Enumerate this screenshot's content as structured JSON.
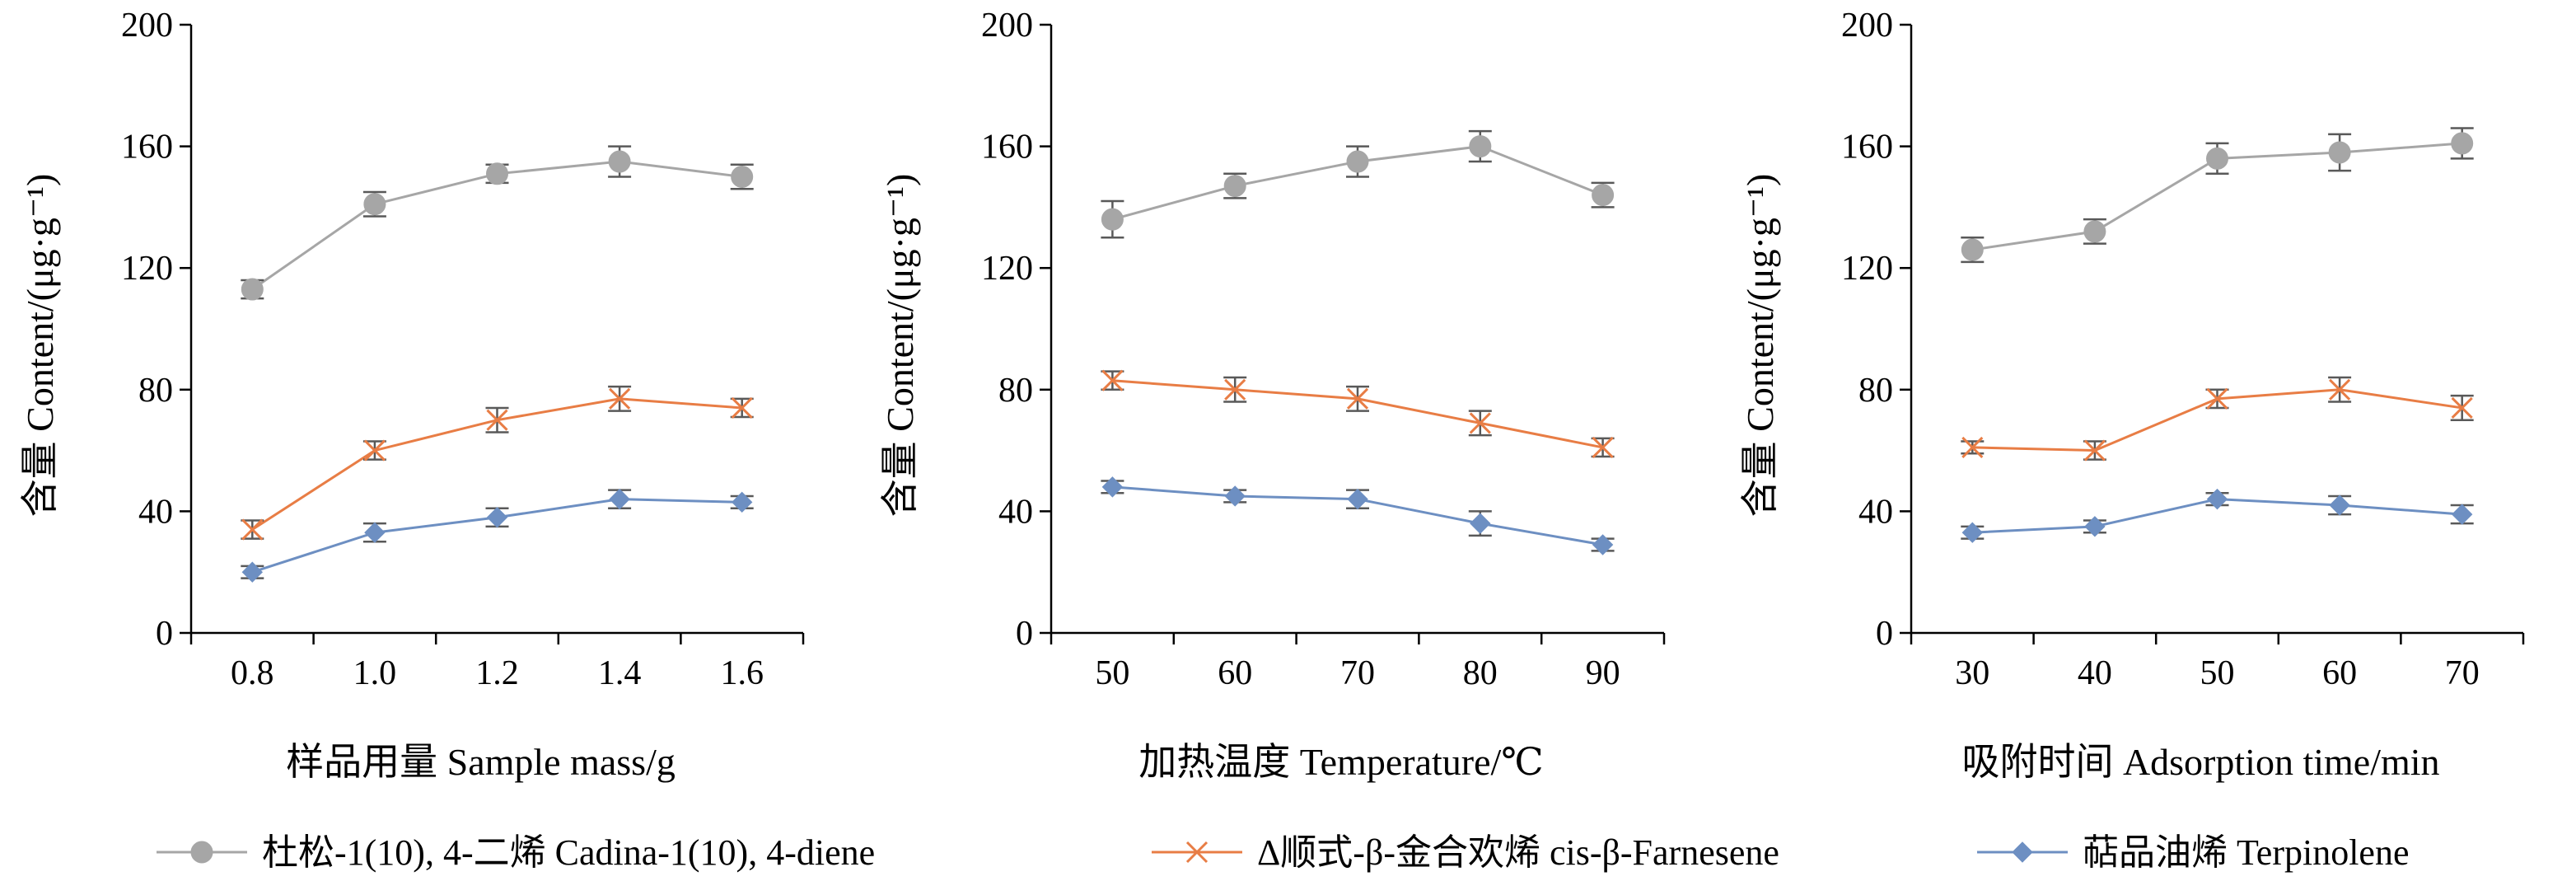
{
  "colors": {
    "series": [
      "#a6a6a6",
      "#e87d45",
      "#6d8fc2"
    ],
    "axis": "#000000"
  },
  "legend": {
    "placement": "bottom",
    "items": [
      {
        "label": "杜松-1(10), 4-二烯  Cadina-1(10), 4-diene",
        "marker": "circle"
      },
      {
        "label": "Δ顺式-β-金合欢烯  cis-β-Farnesene",
        "marker": "x"
      },
      {
        "label": "萜品油烯  Terpinolene",
        "marker": "diamond"
      }
    ]
  },
  "chart_data": [
    {
      "type": "line",
      "xlabel": "样品用量  Sample mass/g",
      "ylabel": "含量  Content/(μg·g⁻¹)",
      "categories": [
        "0.8",
        "1.0",
        "1.2",
        "1.4",
        "1.6"
      ],
      "ylim": [
        0,
        200
      ],
      "yticks": [
        "0",
        "40",
        "80",
        "120",
        "160",
        "200"
      ],
      "grid": false,
      "series": [
        {
          "name": "杜松-1(10), 4-二烯  Cadina-1(10), 4-diene",
          "values": [
            113,
            141,
            151,
            155,
            150
          ],
          "errors": [
            3,
            4,
            3,
            5,
            4
          ]
        },
        {
          "name": "Δ顺式-β-金合欢烯  cis-β-Farnesene",
          "values": [
            34,
            60,
            70,
            77,
            74
          ],
          "errors": [
            3,
            3,
            4,
            4,
            3
          ]
        },
        {
          "name": "萜品油烯  Terpinolene",
          "values": [
            20,
            33,
            38,
            44,
            43
          ],
          "errors": [
            2,
            3,
            3,
            3,
            2
          ]
        }
      ]
    },
    {
      "type": "line",
      "xlabel": "加热温度  Temperature/℃",
      "ylabel": "含量  Content/(μg·g⁻¹)",
      "categories": [
        "50",
        "60",
        "70",
        "80",
        "90"
      ],
      "ylim": [
        0,
        200
      ],
      "yticks": [
        "0",
        "40",
        "80",
        "120",
        "160",
        "200"
      ],
      "grid": false,
      "series": [
        {
          "name": "杜松-1(10), 4-二烯  Cadina-1(10), 4-diene",
          "values": [
            136,
            147,
            155,
            160,
            144
          ],
          "errors": [
            6,
            4,
            5,
            5,
            4
          ]
        },
        {
          "name": "Δ顺式-β-金合欢烯  cis-β-Farnesene",
          "values": [
            83,
            80,
            77,
            69,
            61
          ],
          "errors": [
            3,
            4,
            4,
            4,
            3
          ]
        },
        {
          "name": "萜品油烯  Terpinolene",
          "values": [
            48,
            45,
            44,
            36,
            29
          ],
          "errors": [
            2,
            2,
            3,
            4,
            2
          ]
        }
      ]
    },
    {
      "type": "line",
      "xlabel": "吸附时间  Adsorption time/min",
      "ylabel": "含量  Content/(μg·g⁻¹)",
      "categories": [
        "30",
        "40",
        "50",
        "60",
        "70"
      ],
      "ylim": [
        0,
        200
      ],
      "yticks": [
        "0",
        "40",
        "80",
        "120",
        "160",
        "200"
      ],
      "grid": false,
      "series": [
        {
          "name": "杜松-1(10), 4-二烯  Cadina-1(10), 4-diene",
          "values": [
            126,
            132,
            156,
            158,
            161
          ],
          "errors": [
            4,
            4,
            5,
            6,
            5
          ]
        },
        {
          "name": "Δ顺式-β-金合欢烯  cis-β-Farnesene",
          "values": [
            61,
            60,
            77,
            80,
            74
          ],
          "errors": [
            2,
            3,
            3,
            4,
            4
          ]
        },
        {
          "name": "萜品油烯  Terpinolene",
          "values": [
            33,
            35,
            44,
            42,
            39
          ],
          "errors": [
            2,
            2,
            2,
            3,
            3
          ]
        }
      ]
    }
  ]
}
